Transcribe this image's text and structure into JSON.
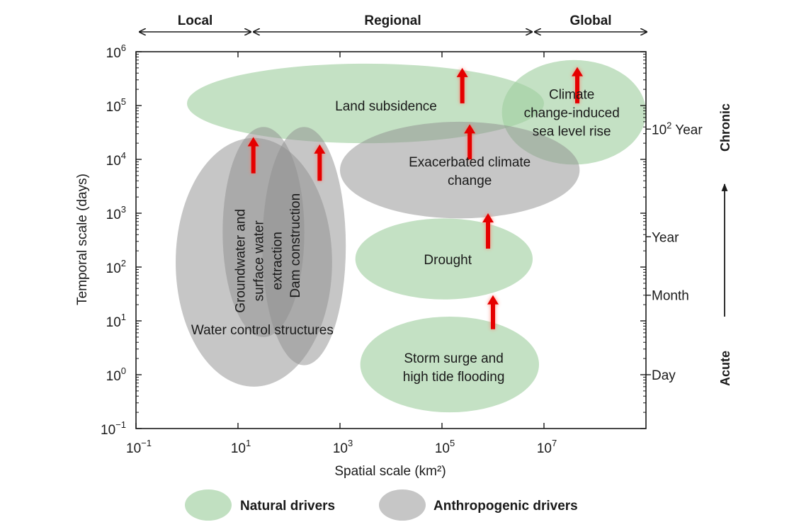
{
  "chart_data": {
    "type": "scatter",
    "title": "",
    "xlabel": "Spatial scale (km²)",
    "ylabel": "Temporal scale (days)",
    "x_scale": "log",
    "y_scale": "log",
    "xlim": [
      0.1,
      1000000000
    ],
    "ylim": [
      0.1,
      1000000
    ],
    "grid": false,
    "legend_placement": "bottom",
    "x_ticks": [
      {
        "value": 0.1,
        "base": "10",
        "exp": "−1"
      },
      {
        "value": 10,
        "base": "10",
        "exp": "1"
      },
      {
        "value": 1000,
        "base": "10",
        "exp": "3"
      },
      {
        "value": 100000,
        "base": "10",
        "exp": "5"
      },
      {
        "value": 10000000,
        "base": "10",
        "exp": "7"
      }
    ],
    "y_ticks": [
      {
        "value": 0.1,
        "base": "10",
        "exp": "−1"
      },
      {
        "value": 1,
        "base": "10",
        "exp": "0"
      },
      {
        "value": 10,
        "base": "10",
        "exp": "1"
      },
      {
        "value": 100,
        "base": "10",
        "exp": "2"
      },
      {
        "value": 1000,
        "base": "10",
        "exp": "3"
      },
      {
        "value": 10000,
        "base": "10",
        "exp": "4"
      },
      {
        "value": 100000,
        "base": "10",
        "exp": "5"
      },
      {
        "value": 1000000,
        "base": "10",
        "exp": "6"
      }
    ],
    "right_ticks": [
      {
        "label": "Day",
        "value": 1
      },
      {
        "label": "Month",
        "value": 30
      },
      {
        "label": "Year",
        "value": 365
      },
      {
        "label_base": "10",
        "label_exp": "2",
        "label_suffix": " Year",
        "value": 36500
      }
    ],
    "top_scale_bands": [
      {
        "label": "Local",
        "x_from": 0.1,
        "x_to": 10
      },
      {
        "label": "Regional",
        "x_from": 10,
        "x_to": 1500000
      },
      {
        "label": "Global",
        "x_from": 1500000,
        "x_to": 1000000000
      }
    ],
    "right_axis_labels": {
      "top": "Chronic",
      "bottom": "Acute"
    },
    "colors": {
      "natural": "#9fcf9f",
      "anthropogenic": "#8d8d8d",
      "arrow": "#e50000"
    },
    "legend": [
      {
        "key": "natural",
        "label": "Natural drivers"
      },
      {
        "key": "anthropogenic",
        "label": "Anthropogenic drivers"
      }
    ],
    "drivers": [
      {
        "id": "land-subsidence",
        "category": "natural",
        "lines": [
          "Land subsidence"
        ],
        "x_range": [
          1,
          10000000
        ],
        "y_range": [
          20000,
          600000
        ],
        "label_at": [
          8000,
          100000
        ]
      },
      {
        "id": "climate-sea-level-rise",
        "category": "natural",
        "lines": [
          "Climate",
          "change-induced",
          "sea level rise"
        ],
        "x_range": [
          1500000,
          1000000000
        ],
        "y_range": [
          8000,
          700000
        ],
        "label_at": [
          35000000,
          75000
        ]
      },
      {
        "id": "drought",
        "category": "natural",
        "lines": [
          "Drought"
        ],
        "x_range": [
          2000,
          6000000
        ],
        "y_range": [
          25,
          800
        ],
        "label_at": [
          130000,
          140
        ]
      },
      {
        "id": "storm-surge",
        "category": "natural",
        "lines": [
          "Storm surge and",
          "high tide flooding"
        ],
        "x_range": [
          2500,
          8000000
        ],
        "y_range": [
          0.2,
          12
        ],
        "label_at": [
          170000,
          1.4
        ]
      },
      {
        "id": "water-control-structures",
        "category": "anthropogenic",
        "lines": [
          "Water control structures"
        ],
        "x_range": [
          0.6,
          700
        ],
        "y_range": [
          0.6,
          25000
        ],
        "label_at": [
          30,
          7
        ]
      },
      {
        "id": "groundwater-extraction",
        "category": "anthropogenic",
        "lines": [
          "Groundwater and",
          "surface water",
          "extraction"
        ],
        "rotation": -90,
        "x_range": [
          5,
          200
        ],
        "y_range": [
          5,
          40000
        ],
        "label_at": [
          25,
          130
        ]
      },
      {
        "id": "dam-construction",
        "category": "anthropogenic",
        "lines": [
          "Dam construction"
        ],
        "rotation": -90,
        "x_range": [
          30,
          1300
        ],
        "y_range": [
          1.5,
          40000
        ],
        "label_at": [
          130,
          250
        ]
      },
      {
        "id": "exacerbated-climate-change",
        "category": "anthropogenic",
        "lines": [
          "Exacerbated climate",
          "change"
        ],
        "x_range": [
          1000,
          50000000
        ],
        "y_range": [
          800,
          50000
        ],
        "label_at": [
          350000,
          6200
        ]
      }
    ],
    "increase_arrows": [
      {
        "x": 20,
        "y_from": 5500,
        "y_to": 26000
      },
      {
        "x": 400,
        "y_from": 4000,
        "y_to": 19000
      },
      {
        "x": 250000,
        "y_from": 110000,
        "y_to": 500000
      },
      {
        "x": 350000,
        "y_from": 10000,
        "y_to": 45000
      },
      {
        "x": 800000,
        "y_from": 220,
        "y_to": 1000
      },
      {
        "x": 1000000,
        "y_from": 7,
        "y_to": 30
      },
      {
        "x": 45000000,
        "y_from": 110000,
        "y_to": 520000
      }
    ]
  }
}
